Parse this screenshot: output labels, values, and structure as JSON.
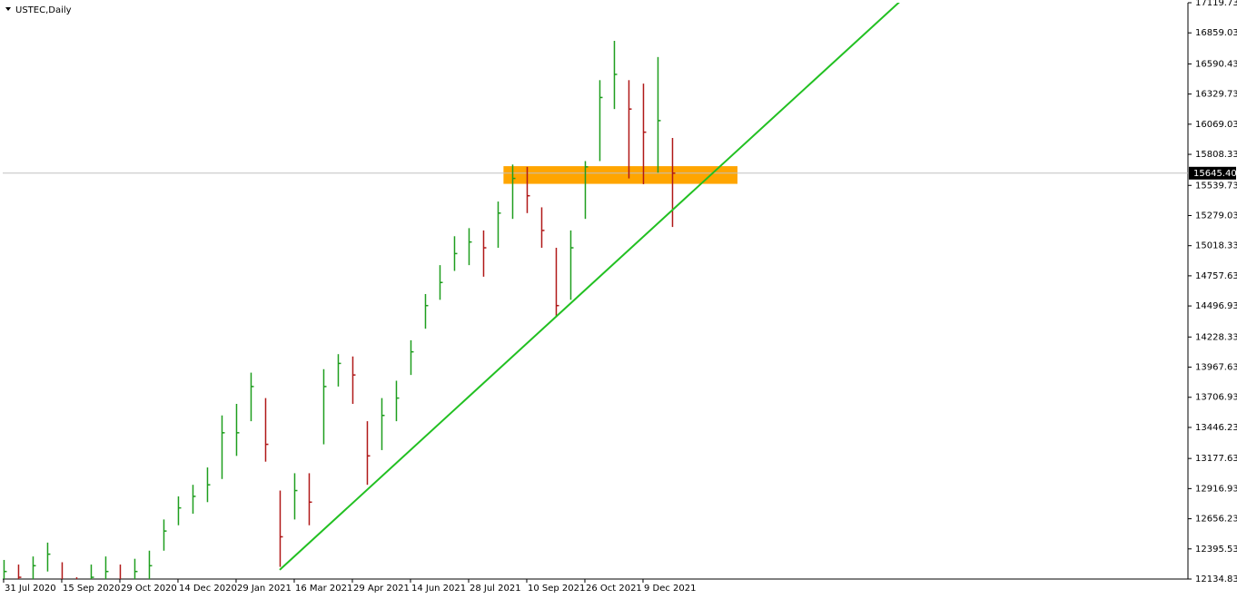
{
  "chart_data": {
    "type": "ohlc",
    "title": "USTEC,Daily",
    "categories": [
      "31 Jul 2020",
      null,
      null,
      null,
      "15 Sep 2020",
      null,
      null,
      null,
      "29 Oct 2020",
      null,
      null,
      null,
      "14 Dec 2020",
      null,
      null,
      null,
      "29 Jan 2021",
      null,
      null,
      null,
      "16 Mar 2021",
      null,
      null,
      null,
      "29 Apr 2021",
      null,
      null,
      null,
      "14 Jun 2021",
      null,
      null,
      null,
      "28 Jul 2021",
      null,
      null,
      null,
      "10 Sep 2021",
      null,
      null,
      null,
      "26 Oct 2021",
      null,
      null,
      null,
      "9 Dec 2021",
      null,
      null
    ],
    "high": [
      12300,
      12260,
      12330,
      12450,
      12280,
      12150,
      12260,
      12330,
      12260,
      12310,
      12380,
      12650,
      12850,
      12950,
      13100,
      13550,
      13650,
      13920,
      13700,
      12900,
      13050,
      13050,
      13950,
      14080,
      14060,
      13500,
      13700,
      13850,
      14200,
      14600,
      14850,
      15100,
      15170,
      15150,
      15400,
      15720,
      15700,
      15350,
      15000,
      15150,
      15750,
      16450,
      16790,
      16450,
      16420,
      16650,
      15950
    ],
    "low": [
      12100,
      12050,
      12120,
      12200,
      12000,
      11980,
      12050,
      12080,
      12000,
      12080,
      12130,
      12380,
      12600,
      12700,
      12800,
      13000,
      13200,
      13500,
      13150,
      12240,
      12650,
      12600,
      13300,
      13800,
      13650,
      12950,
      13250,
      13500,
      13900,
      14300,
      14550,
      14800,
      14850,
      14750,
      15000,
      15250,
      15300,
      15000,
      14400,
      14550,
      15250,
      15750,
      16200,
      15600,
      15550,
      15650,
      15180
    ],
    "close": [
      12200,
      12150,
      12250,
      12350,
      12100,
      12050,
      12150,
      12200,
      12100,
      12200,
      12250,
      12550,
      12750,
      12850,
      12950,
      13400,
      13400,
      13800,
      13300,
      12500,
      12900,
      12800,
      13800,
      14000,
      13900,
      13200,
      13550,
      13700,
      14100,
      14500,
      14700,
      14950,
      15050,
      15000,
      15300,
      15600,
      15450,
      15150,
      14500,
      15000,
      15700,
      16300,
      16500,
      16200,
      16000,
      16100,
      15645.4
    ],
    "up_color": "#1e9e1e",
    "down_color": "#b01818",
    "xlim": [
      -0.06,
      81.5
    ],
    "ylim": [
      12134.83,
      17119.73
    ],
    "yticks": [
      {
        "value": 12134.83,
        "label": "12134.83"
      },
      {
        "value": 12395.53,
        "label": "12395.53"
      },
      {
        "value": 12656.23,
        "label": "12656.23"
      },
      {
        "value": 12916.93,
        "label": "12916.93"
      },
      {
        "value": 13177.63,
        "label": "13177.63"
      },
      {
        "value": 13446.23,
        "label": "13446.23"
      },
      {
        "value": 13706.93,
        "label": "13706.93"
      },
      {
        "value": 13967.63,
        "label": "13967.63"
      },
      {
        "value": 14228.33,
        "label": "14228.33"
      },
      {
        "value": 14496.93,
        "label": "14496.93"
      },
      {
        "value": 14757.63,
        "label": "14757.63"
      },
      {
        "value": 15018.33,
        "label": "15018.33"
      },
      {
        "value": 15279.03,
        "label": "15279.03"
      },
      {
        "value": 15539.73,
        "label": "15539.73"
      },
      {
        "value": 15808.33,
        "label": "15808.33"
      },
      {
        "value": 16069.03,
        "label": "16069.03"
      },
      {
        "value": 16329.73,
        "label": "16329.73"
      },
      {
        "value": 16590.43,
        "label": "16590.43"
      },
      {
        "value": 16859.03,
        "label": "16859.03"
      },
      {
        "value": 17119.73,
        "label": "17119.73"
      }
    ],
    "last_price": {
      "value": 15645.4,
      "label": "15645.40"
    },
    "zone": {
      "x": [
        34.4,
        50.5
      ],
      "y": [
        15553,
        15706
      ],
      "color": "#ffa500"
    },
    "trendline": {
      "x": [
        19,
        62
      ],
      "y": [
        12214,
        17167
      ],
      "color": "#22c022"
    }
  }
}
